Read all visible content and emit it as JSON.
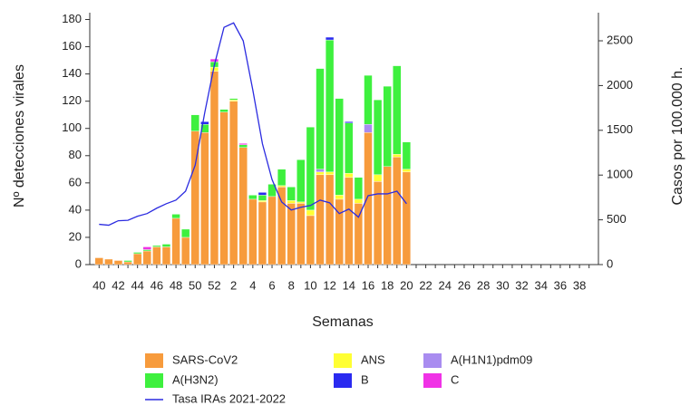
{
  "chart_data": {
    "type": "stacked-bar-line",
    "y_label": "Nº detecciones virales",
    "y2_label": "Casos por 100.000 h.",
    "x_label": "Semanas",
    "categories": [
      "40",
      null,
      "42",
      null,
      "44",
      null,
      "46",
      null,
      "48",
      null,
      "50",
      null,
      "52",
      null,
      "2",
      null,
      "4",
      null,
      "6",
      null,
      "8",
      null,
      "10",
      null,
      "12",
      null,
      "14",
      null,
      "16",
      null,
      "18",
      null,
      "20",
      null,
      "22",
      null,
      "24",
      null,
      "26",
      null,
      "28",
      null,
      "30",
      null,
      "32",
      null,
      "34",
      null,
      "36",
      null,
      "38",
      null
    ],
    "ylim": [
      0,
      185
    ],
    "yticks": [
      0,
      20,
      40,
      60,
      80,
      100,
      120,
      140,
      160,
      180
    ],
    "y2lim": [
      0,
      2814
    ],
    "y2ticks": [
      0,
      500,
      1000,
      1500,
      2000,
      2500
    ],
    "series": [
      {
        "name": "SARS-CoV2",
        "color": "#f79b3c",
        "values": [
          5,
          4,
          3,
          2,
          8,
          10,
          13,
          13,
          34,
          20,
          98,
          97,
          142,
          112,
          120,
          86,
          48,
          46,
          50,
          57,
          45,
          45,
          36,
          66,
          66,
          48,
          64,
          45,
          97,
          61,
          72,
          79,
          68,
          null,
          null,
          null,
          null,
          null,
          null,
          null,
          null,
          null,
          null,
          null,
          null,
          null,
          null,
          null,
          null,
          null,
          null,
          null
        ]
      },
      {
        "name": "ANS",
        "color": "#ffff33",
        "values": [
          0,
          0,
          0,
          0,
          0,
          0,
          0,
          0,
          0,
          0,
          0,
          0,
          3,
          0,
          1,
          0,
          0,
          1,
          0,
          1,
          2,
          1,
          4,
          2,
          2,
          3,
          3,
          3,
          0,
          5,
          0,
          2,
          2,
          null,
          null,
          null,
          null,
          null,
          null,
          null,
          null,
          null,
          null,
          null,
          null,
          null,
          null,
          null,
          null,
          null,
          null,
          null
        ]
      },
      {
        "name": "A(H1N1)pdm09",
        "color": "#a98cf0",
        "values": [
          0,
          0,
          0,
          0,
          0,
          0,
          0,
          0,
          0,
          0,
          0,
          0,
          0,
          0,
          0,
          0,
          0,
          0,
          0,
          0,
          0,
          0,
          0,
          2,
          0,
          0,
          0,
          0,
          6,
          0,
          0,
          0,
          0,
          null,
          null,
          null,
          null,
          null,
          null,
          null,
          null,
          null,
          null,
          null,
          null,
          null,
          null,
          null,
          null,
          null,
          null,
          null
        ]
      },
      {
        "name": "A(H3N2)",
        "color": "#3ef03e",
        "values": [
          0,
          0,
          0,
          1,
          1,
          1,
          1,
          2,
          3,
          6,
          12,
          6,
          4,
          2,
          1,
          2,
          3,
          4,
          9,
          12,
          10,
          31,
          61,
          74,
          97,
          71,
          37,
          16,
          36,
          55,
          59,
          65,
          20,
          null,
          null,
          null,
          null,
          null,
          null,
          null,
          null,
          null,
          null,
          null,
          null,
          null,
          null,
          null,
          null,
          null,
          null,
          null
        ]
      },
      {
        "name": "B",
        "color": "#2a2af0",
        "values": [
          0,
          0,
          0,
          0,
          0,
          0,
          0,
          0,
          0,
          0,
          0,
          2,
          0,
          0,
          0,
          0,
          0,
          2,
          0,
          0,
          0,
          0,
          0,
          0,
          2,
          0,
          1,
          0,
          0,
          0,
          0,
          0,
          0,
          null,
          null,
          null,
          null,
          null,
          null,
          null,
          null,
          null,
          null,
          null,
          null,
          null,
          null,
          null,
          null,
          null,
          null,
          null
        ]
      },
      {
        "name": "C",
        "color": "#f032e6",
        "values": [
          0,
          0,
          0,
          0,
          0,
          2,
          0,
          0,
          0,
          0,
          0,
          0,
          2,
          0,
          0,
          1,
          0,
          0,
          0,
          0,
          0,
          0,
          0,
          0,
          0,
          0,
          0,
          0,
          0,
          0,
          0,
          0,
          0,
          null,
          null,
          null,
          null,
          null,
          null,
          null,
          null,
          null,
          null,
          null,
          null,
          null,
          null,
          null,
          null,
          null,
          null,
          null
        ]
      },
      {
        "name": "Tasa IRAs 2021-2022",
        "color": "#2b2be0",
        "axis": "y2",
        "values": [
          450,
          440,
          490,
          495,
          540,
          570,
          630,
          680,
          720,
          820,
          1110,
          1700,
          2230,
          2650,
          2700,
          2500,
          1950,
          1350,
          950,
          700,
          610,
          640,
          660,
          720,
          690,
          570,
          620,
          530,
          770,
          790,
          790,
          820,
          680,
          null,
          null,
          null,
          null,
          null,
          null,
          null,
          null,
          null,
          null,
          null,
          null,
          null,
          null,
          null,
          null,
          null,
          null,
          null
        ]
      }
    ]
  }
}
